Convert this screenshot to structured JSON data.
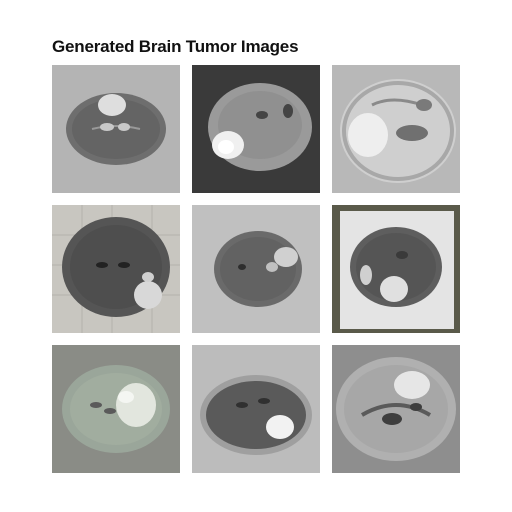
{
  "title": "Generated Brain Tumor Images",
  "tiles": [
    {
      "label": "brain-scan-1",
      "bg": "#b4b4b4",
      "tissue": "#6e6e6e",
      "tumor": "#dedede",
      "row": 1,
      "col": 1
    },
    {
      "label": "brain-scan-2",
      "bg": "#3a3a3a",
      "tissue": "#9a9a9a",
      "tumor": "#f0f0f0",
      "row": 1,
      "col": 2
    },
    {
      "label": "brain-scan-3",
      "bg": "#b8b8b8",
      "tissue": "#d0d0d0",
      "tumor": "#eeeeee",
      "row": 1,
      "col": 3
    },
    {
      "label": "brain-scan-4",
      "bg": "#c8c6c0",
      "tissue": "#555555",
      "tumor": "#d8d8d8",
      "row": 2,
      "col": 1
    },
    {
      "label": "brain-scan-5",
      "bg": "#c0c0c0",
      "tissue": "#6a6a6a",
      "tumor": "#d0d0d0",
      "row": 2,
      "col": 2
    },
    {
      "label": "brain-scan-6",
      "bg": "#5a5a4a",
      "tissue": "#5e5e5e",
      "tumor": "#e0e0e0",
      "row": 2,
      "col": 3
    },
    {
      "label": "brain-scan-7",
      "bg": "#8a8c86",
      "tissue": "#9aa69a",
      "tumor": "#e2e6de",
      "row": 3,
      "col": 1
    },
    {
      "label": "brain-scan-8",
      "bg": "#bcbcbc",
      "tissue": "#5a5a5a",
      "tumor": "#f2f2f2",
      "row": 3,
      "col": 2
    },
    {
      "label": "brain-scan-9",
      "bg": "#8e8e8e",
      "tissue": "#b0b0b0",
      "tumor": "#e6e6e6",
      "row": 3,
      "col": 3
    }
  ]
}
